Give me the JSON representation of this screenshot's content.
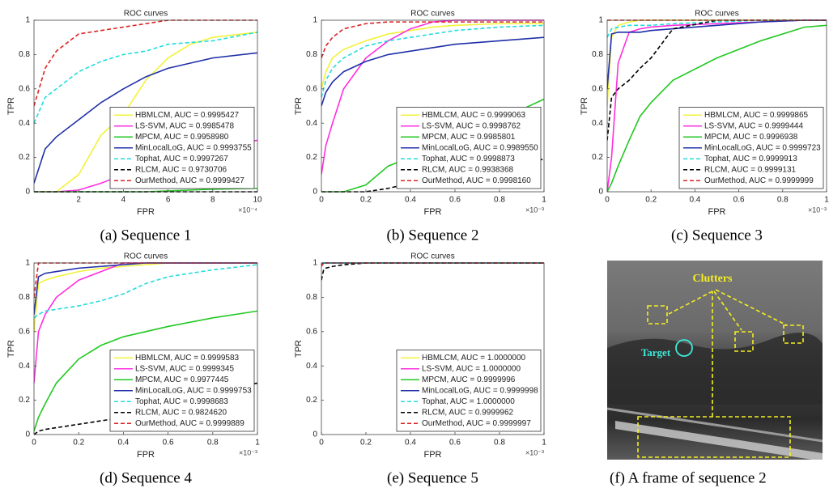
{
  "chart_data": [
    {
      "type": "line",
      "title": "ROC curves",
      "xlabel": "FPR",
      "ylabel": "TPR",
      "x_multiplier": "×10⁻⁴",
      "caption": "(a) Sequence 1",
      "xlim": [
        0,
        10
      ],
      "ylim": [
        0,
        1
      ],
      "xticks": [
        2,
        4,
        6,
        8,
        10
      ],
      "yticks": [
        0,
        0.2,
        0.4,
        0.6,
        0.8,
        1
      ],
      "legend": "lower right",
      "x": [
        0,
        0.5,
        1,
        2,
        3,
        4,
        5,
        6,
        7,
        8,
        10
      ],
      "series": [
        {
          "name": "HBMLCM, AUC = 0.9995427",
          "color": "#f2f23a",
          "style": "solid",
          "values": [
            0,
            0,
            0,
            0.1,
            0.33,
            0.45,
            0.65,
            0.78,
            0.86,
            0.9,
            0.93
          ]
        },
        {
          "name": "LS-SVM, AUC = 0.9985478",
          "color": "#ff2ee0",
          "style": "solid",
          "values": [
            0,
            0,
            0,
            0.01,
            0.05,
            0.1,
            0.14,
            0.18,
            0.22,
            0.26,
            0.3
          ]
        },
        {
          "name": "MPCM, AUC = 0.9958980",
          "color": "#22c822",
          "style": "solid",
          "values": [
            0,
            0,
            0,
            0,
            0,
            0,
            0,
            0.005,
            0.01,
            0.015,
            0.02
          ]
        },
        {
          "name": "MinLocalLoG, AUC = 0.9993755",
          "color": "#1f2fa8",
          "style": "solid",
          "values": [
            0.05,
            0.25,
            0.32,
            0.42,
            0.52,
            0.6,
            0.67,
            0.72,
            0.75,
            0.78,
            0.81
          ]
        },
        {
          "name": "Tophat, AUC = 0.9997267",
          "color": "#22dcdc",
          "style": "dashed",
          "values": [
            0.4,
            0.55,
            0.6,
            0.7,
            0.76,
            0.8,
            0.82,
            0.86,
            0.87,
            0.88,
            0.93
          ]
        },
        {
          "name": "RLCM, AUC = 0.9730706",
          "color": "#000000",
          "style": "dashed",
          "values": [
            0,
            0,
            0,
            0,
            0,
            0,
            0,
            0,
            0,
            0,
            0
          ]
        },
        {
          "name": "OurMethod, AUC = 0.9999427",
          "color": "#dd2222",
          "style": "dashed",
          "values": [
            0.5,
            0.72,
            0.82,
            0.92,
            0.94,
            0.96,
            0.98,
            1,
            1,
            1,
            1
          ]
        }
      ]
    },
    {
      "type": "line",
      "title": "ROC curves",
      "xlabel": "FPR",
      "ylabel": "TPR",
      "x_multiplier": "×10⁻³",
      "caption": "(b) Sequence 2",
      "xlim": [
        0,
        1
      ],
      "ylim": [
        0,
        1
      ],
      "xticks": [
        0,
        0.2,
        0.4,
        0.6,
        0.8,
        1
      ],
      "yticks": [
        0,
        0.2,
        0.4,
        0.6,
        0.8,
        1
      ],
      "legend": "lower right",
      "x": [
        0,
        0.02,
        0.05,
        0.1,
        0.2,
        0.3,
        0.4,
        0.5,
        0.6,
        0.8,
        1
      ],
      "series": [
        {
          "name": "HBMLCM, AUC = 0.9999063",
          "color": "#f2f23a",
          "style": "solid",
          "values": [
            0.6,
            0.7,
            0.78,
            0.83,
            0.88,
            0.92,
            0.94,
            0.96,
            0.97,
            0.98,
            0.98
          ]
        },
        {
          "name": "LS-SVM, AUC = 0.9998762",
          "color": "#ff2ee0",
          "style": "solid",
          "values": [
            0.1,
            0.27,
            0.4,
            0.6,
            0.78,
            0.88,
            0.95,
            0.99,
            1,
            1,
            1
          ]
        },
        {
          "name": "MPCM, AUC = 0.9985801",
          "color": "#22c822",
          "style": "solid",
          "values": [
            0,
            0,
            0,
            0,
            0.04,
            0.15,
            0.2,
            0.25,
            0.3,
            0.42,
            0.54
          ]
        },
        {
          "name": "MinLocalLoG, AUC = 0.9989550",
          "color": "#1f2fa8",
          "style": "solid",
          "values": [
            0.5,
            0.58,
            0.64,
            0.7,
            0.76,
            0.8,
            0.82,
            0.84,
            0.86,
            0.88,
            0.9
          ]
        },
        {
          "name": "Tophat, AUC = 0.9998873",
          "color": "#22dcdc",
          "style": "dashed",
          "values": [
            0.55,
            0.65,
            0.72,
            0.78,
            0.85,
            0.88,
            0.9,
            0.92,
            0.94,
            0.96,
            0.97
          ]
        },
        {
          "name": "RLCM, AUC = 0.9938368",
          "color": "#000000",
          "style": "dashed",
          "values": [
            0,
            0,
            0,
            0,
            0,
            0.02,
            0.05,
            0.08,
            0.11,
            0.15,
            0.19
          ]
        },
        {
          "name": "OurMethod, AUC = 0.9998160",
          "color": "#dd2222",
          "style": "dashed",
          "values": [
            0.78,
            0.85,
            0.9,
            0.95,
            0.98,
            0.99,
            0.99,
            0.99,
            0.99,
            0.99,
            0.99
          ]
        }
      ]
    },
    {
      "type": "line",
      "title": "ROC curves",
      "xlabel": "FPR",
      "ylabel": "TPR",
      "x_multiplier": "×10⁻³",
      "caption": "(c) Sequence 3",
      "xlim": [
        0,
        1
      ],
      "ylim": [
        0,
        1
      ],
      "xticks": [
        0,
        0.2,
        0.4,
        0.6,
        0.8,
        1
      ],
      "yticks": [
        0,
        0.2,
        0.4,
        0.6,
        0.8,
        1
      ],
      "legend": "lower right",
      "x": [
        0,
        0.02,
        0.05,
        0.1,
        0.15,
        0.2,
        0.3,
        0.5,
        0.7,
        0.9,
        1
      ],
      "series": [
        {
          "name": "HBMLCM, AUC = 0.9999865",
          "color": "#f2f23a",
          "style": "solid",
          "values": [
            0.5,
            0.9,
            0.97,
            0.99,
            1,
            1,
            1,
            1,
            1,
            1,
            1
          ]
        },
        {
          "name": "LS-SVM, AUC = 0.9999444",
          "color": "#ff2ee0",
          "style": "solid",
          "values": [
            0,
            0.2,
            0.75,
            0.93,
            0.95,
            0.96,
            0.97,
            0.98,
            0.99,
            1,
            1
          ]
        },
        {
          "name": "MPCM, AUC = 0.9996938",
          "color": "#22c822",
          "style": "solid",
          "values": [
            0,
            0.05,
            0.15,
            0.3,
            0.44,
            0.52,
            0.65,
            0.78,
            0.88,
            0.96,
            0.97
          ]
        },
        {
          "name": "MinLocalLoG, AUC = 0.9999723",
          "color": "#1f2fa8",
          "style": "solid",
          "values": [
            0.6,
            0.92,
            0.93,
            0.93,
            0.93,
            0.94,
            0.95,
            0.97,
            0.99,
            1,
            1
          ]
        },
        {
          "name": "Tophat, AUC = 0.9999913",
          "color": "#22dcdc",
          "style": "dashed",
          "values": [
            0.9,
            0.95,
            0.96,
            0.97,
            0.97,
            0.97,
            0.98,
            0.99,
            1,
            1,
            1
          ]
        },
        {
          "name": "RLCM, AUC = 0.9999131",
          "color": "#000000",
          "style": "dashed",
          "values": [
            0.3,
            0.55,
            0.6,
            0.65,
            0.72,
            0.78,
            0.95,
            1,
            1,
            1,
            1
          ]
        },
        {
          "name": "OurMethod, AUC = 0.9999999",
          "color": "#dd2222",
          "style": "dashed",
          "values": [
            1,
            1,
            1,
            1,
            1,
            1,
            1,
            1,
            1,
            1,
            1
          ]
        }
      ]
    },
    {
      "type": "line",
      "title": "ROC curves",
      "xlabel": "FPR",
      "ylabel": "TPR",
      "x_multiplier": "×10⁻³",
      "caption": "(d) Sequence 4",
      "xlim": [
        0,
        1
      ],
      "ylim": [
        0,
        1
      ],
      "xticks": [
        0,
        0.2,
        0.4,
        0.6,
        0.8,
        1
      ],
      "yticks": [
        0,
        0.2,
        0.4,
        0.6,
        0.8,
        1
      ],
      "legend": "lower right",
      "x": [
        0,
        0.02,
        0.05,
        0.1,
        0.2,
        0.3,
        0.4,
        0.5,
        0.6,
        0.8,
        1
      ],
      "series": [
        {
          "name": "HBMLCM, AUC = 0.9999583",
          "color": "#f2f23a",
          "style": "solid",
          "values": [
            0.6,
            0.88,
            0.9,
            0.92,
            0.95,
            0.97,
            0.98,
            0.99,
            1,
            1,
            1
          ]
        },
        {
          "name": "LS-SVM, AUC = 0.9999345",
          "color": "#ff2ee0",
          "style": "solid",
          "values": [
            0.3,
            0.6,
            0.7,
            0.8,
            0.9,
            0.95,
            1,
            1,
            1,
            1,
            1
          ]
        },
        {
          "name": "MPCM, AUC = 0.9977445",
          "color": "#22c822",
          "style": "solid",
          "values": [
            0.02,
            0.1,
            0.18,
            0.3,
            0.44,
            0.52,
            0.57,
            0.6,
            0.63,
            0.68,
            0.72
          ]
        },
        {
          "name": "MinLocalLoG, AUC = 0.9999753",
          "color": "#1f2fa8",
          "style": "solid",
          "values": [
            0.7,
            0.92,
            0.94,
            0.95,
            0.97,
            0.98,
            0.99,
            1,
            1,
            1,
            1
          ]
        },
        {
          "name": "Tophat, AUC = 0.9998683",
          "color": "#22dcdc",
          "style": "dashed",
          "values": [
            0.68,
            0.7,
            0.72,
            0.73,
            0.75,
            0.78,
            0.82,
            0.88,
            0.92,
            0.96,
            0.99
          ]
        },
        {
          "name": "RLCM, AUC = 0.9824620",
          "color": "#000000",
          "style": "dashed",
          "values": [
            0,
            0.02,
            0.03,
            0.04,
            0.06,
            0.08,
            0.1,
            0.15,
            0.2,
            0.25,
            0.3
          ]
        },
        {
          "name": "OurMethod, AUC = 0.9999889",
          "color": "#dd2222",
          "style": "dashed",
          "values": [
            0.8,
            1,
            1,
            1,
            1,
            1,
            1,
            1,
            1,
            1,
            1
          ]
        }
      ]
    },
    {
      "type": "line",
      "title": "ROC curves",
      "xlabel": "FPR",
      "ylabel": "TPR",
      "x_multiplier": "×10⁻³",
      "caption": "(e) Sequence 5",
      "xlim": [
        0,
        1
      ],
      "ylim": [
        0,
        1
      ],
      "xticks": [
        0,
        0.2,
        0.4,
        0.6,
        0.8,
        1
      ],
      "yticks": [
        0,
        0.2,
        0.4,
        0.6,
        0.8,
        1
      ],
      "legend": "lower right",
      "x": [
        0,
        0.01,
        0.02,
        0.05,
        0.1,
        0.2,
        0.3,
        0.5,
        0.7,
        0.9,
        1
      ],
      "series": [
        {
          "name": "HBMLCM, AUC = 1.0000000",
          "color": "#f2f23a",
          "style": "solid",
          "values": [
            1,
            1,
            1,
            1,
            1,
            1,
            1,
            1,
            1,
            1,
            1
          ]
        },
        {
          "name": "LS-SVM, AUC = 1.0000000",
          "color": "#ff2ee0",
          "style": "solid",
          "values": [
            1,
            1,
            1,
            1,
            1,
            1,
            1,
            1,
            1,
            1,
            1
          ]
        },
        {
          "name": "MPCM, AUC = 0.9999996",
          "color": "#22c822",
          "style": "solid",
          "values": [
            0.99,
            1,
            1,
            1,
            1,
            1,
            1,
            1,
            1,
            1,
            1
          ]
        },
        {
          "name": "MinLocalLoG, AUC = 0.9999998",
          "color": "#1f2fa8",
          "style": "solid",
          "values": [
            0.99,
            1,
            1,
            1,
            1,
            1,
            1,
            1,
            1,
            1,
            1
          ]
        },
        {
          "name": "Tophat, AUC = 1.0000000",
          "color": "#22dcdc",
          "style": "dashed",
          "values": [
            1,
            1,
            1,
            1,
            1,
            1,
            1,
            1,
            1,
            1,
            1
          ]
        },
        {
          "name": "RLCM, AUC = 0.9999962",
          "color": "#000000",
          "style": "dashed",
          "values": [
            0.9,
            0.96,
            0.97,
            0.98,
            0.99,
            1,
            1,
            1,
            1,
            1,
            1
          ]
        },
        {
          "name": "OurMethod, AUC = 0.9999997",
          "color": "#dd2222",
          "style": "dashed",
          "values": [
            0.98,
            1,
            1,
            1,
            1,
            1,
            1,
            1,
            1,
            1,
            1
          ]
        }
      ]
    }
  ],
  "image_panel": {
    "clutters_label": "Clutters",
    "target_label": "Target",
    "caption": "(f) A frame of sequence 2"
  }
}
